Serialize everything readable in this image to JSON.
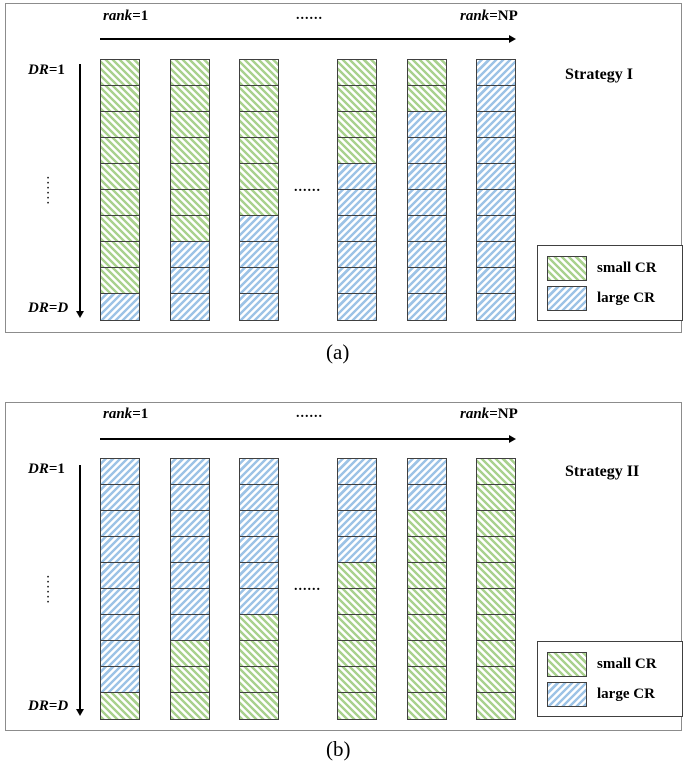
{
  "colors": {
    "small_cr": "#a9d18e",
    "large_cr": "#9dc3e6",
    "cell_border": "#404040",
    "frame_border": "#8c8c8c"
  },
  "chart_data": [
    {
      "type": "diagram",
      "panel": "a",
      "title": "Strategy I",
      "caption": "(a)",
      "x_axis": {
        "start_label": "rank=1",
        "middle_label": "......",
        "end_label": "rank=NP"
      },
      "y_axis": {
        "start_label": "DR=1",
        "middle_label": "......",
        "end_label": "DR=D"
      },
      "legend": [
        "small CR",
        "large CR"
      ],
      "columns_top_to_bottom": [
        {
          "small_cr": 9,
          "large_cr": 1
        },
        {
          "small_cr": 7,
          "large_cr": 3
        },
        {
          "small_cr": 6,
          "large_cr": 4
        },
        {
          "small_cr": 4,
          "large_cr": 6
        },
        {
          "small_cr": 2,
          "large_cr": 8
        },
        {
          "small_cr": 0,
          "large_cr": 10
        }
      ],
      "order": "small CR on top, large CR on bottom"
    },
    {
      "type": "diagram",
      "panel": "b",
      "title": "Strategy II",
      "caption": "(b)",
      "x_axis": {
        "start_label": "rank=1",
        "middle_label": "......",
        "end_label": "rank=NP"
      },
      "y_axis": {
        "start_label": "DR=1",
        "middle_label": "......",
        "end_label": "DR=D"
      },
      "legend": [
        "small CR",
        "large CR"
      ],
      "columns_top_to_bottom": [
        {
          "large_cr": 9,
          "small_cr": 1
        },
        {
          "large_cr": 7,
          "small_cr": 3
        },
        {
          "large_cr": 6,
          "small_cr": 4
        },
        {
          "large_cr": 4,
          "small_cr": 6
        },
        {
          "large_cr": 2,
          "small_cr": 8
        },
        {
          "large_cr": 0,
          "small_cr": 10
        }
      ],
      "order": "large CR on top, small CR on bottom"
    }
  ],
  "panels": {
    "a": {
      "strategy": "Strategy I",
      "caption": "(a)",
      "rank_start_italic": "rank",
      "rank_start_value": "=1",
      "rank_end_italic": "rank",
      "rank_end_value": "=NP",
      "rank_dots": "......",
      "dr_start_italic": "DR",
      "dr_start_value": "=1",
      "dr_end_italic": "DR",
      "dr_end_eq": "=",
      "dr_end_value": "D",
      "dr_dots": "......",
      "mid_dots": "......",
      "legend_small": "small CR",
      "legend_large": "large CR",
      "columns": [
        [
          "g",
          "g",
          "g",
          "g",
          "g",
          "g",
          "g",
          "g",
          "g",
          "b"
        ],
        [
          "g",
          "g",
          "g",
          "g",
          "g",
          "g",
          "g",
          "b",
          "b",
          "b"
        ],
        [
          "g",
          "g",
          "g",
          "g",
          "g",
          "g",
          "b",
          "b",
          "b",
          "b"
        ],
        [
          "g",
          "g",
          "g",
          "g",
          "b",
          "b",
          "b",
          "b",
          "b",
          "b"
        ],
        [
          "g",
          "g",
          "b",
          "b",
          "b",
          "b",
          "b",
          "b",
          "b",
          "b"
        ],
        [
          "b",
          "b",
          "b",
          "b",
          "b",
          "b",
          "b",
          "b",
          "b",
          "b"
        ]
      ]
    },
    "b": {
      "strategy": "Strategy II",
      "caption": "(b)",
      "rank_start_italic": "rank",
      "rank_start_value": "=1",
      "rank_end_italic": "rank",
      "rank_end_value": "=NP",
      "rank_dots": "......",
      "dr_start_italic": "DR",
      "dr_start_value": "=1",
      "dr_end_italic": "DR",
      "dr_end_eq": "=",
      "dr_end_value": "D",
      "dr_dots": "......",
      "mid_dots": "......",
      "legend_small": "small CR",
      "legend_large": "large CR",
      "columns": [
        [
          "b",
          "b",
          "b",
          "b",
          "b",
          "b",
          "b",
          "b",
          "b",
          "g"
        ],
        [
          "b",
          "b",
          "b",
          "b",
          "b",
          "b",
          "b",
          "g",
          "g",
          "g"
        ],
        [
          "b",
          "b",
          "b",
          "b",
          "b",
          "b",
          "g",
          "g",
          "g",
          "g"
        ],
        [
          "b",
          "b",
          "b",
          "b",
          "g",
          "g",
          "g",
          "g",
          "g",
          "g"
        ],
        [
          "b",
          "b",
          "g",
          "g",
          "g",
          "g",
          "g",
          "g",
          "g",
          "g"
        ],
        [
          "g",
          "g",
          "g",
          "g",
          "g",
          "g",
          "g",
          "g",
          "g",
          "g"
        ]
      ]
    }
  }
}
